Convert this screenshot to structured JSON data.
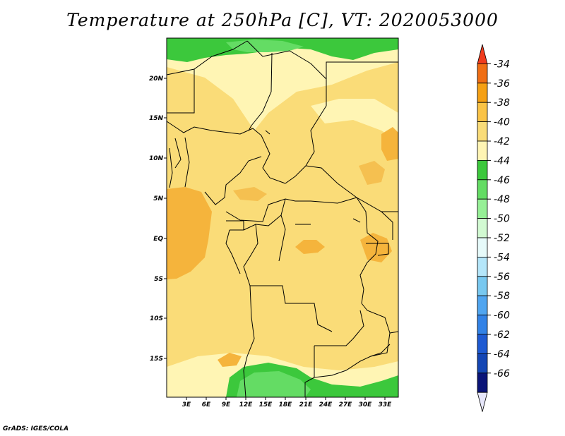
{
  "title": "Temperature at 250hPa [C], VT: 2020053000",
  "credit": "GrADS: IGES/COLA",
  "lat_labels": [
    "20N",
    "15N",
    "10N",
    "5N",
    "EQ",
    "5S",
    "10S",
    "15S"
  ],
  "lon_labels": [
    "3E",
    "6E",
    "9E",
    "12E",
    "15E",
    "18E",
    "21E",
    "24E",
    "27E",
    "30E",
    "33E"
  ],
  "colorbar": {
    "labels": [
      "-34",
      "-36",
      "-38",
      "-40",
      "-42",
      "-44",
      "-46",
      "-48",
      "-50",
      "-52",
      "-54",
      "-56",
      "-58",
      "-60",
      "-62",
      "-64",
      "-66"
    ],
    "colors": [
      "#f03c1e",
      "#f06e14",
      "#f5a014",
      "#fac346",
      "#fadc78",
      "#fff5b4",
      "#3cc83c",
      "#64dc64",
      "#96f096",
      "#d2fad2",
      "#e6fafa",
      "#b4e6fa",
      "#78c8f0",
      "#50a5f0",
      "#3282e6",
      "#1e5ad2",
      "#1446b4",
      "#0a1478",
      "#e6e6fa"
    ]
  }
}
